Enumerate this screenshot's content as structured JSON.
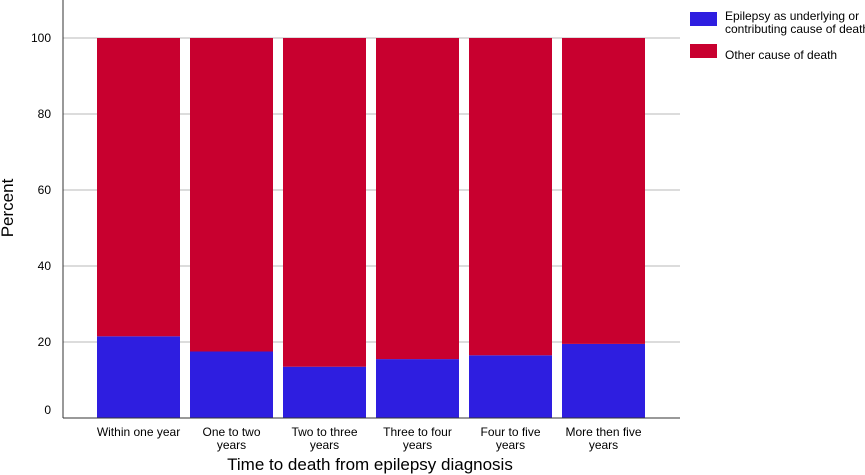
{
  "chart_data": {
    "type": "bar",
    "stacked": true,
    "title": "",
    "xlabel": "Time to death from epilepsy diagnosis",
    "ylabel": "Percent",
    "ylim": [
      0,
      110
    ],
    "yticks": [
      0,
      20,
      40,
      60,
      80,
      100
    ],
    "grid": true,
    "legend_position": "top-right",
    "categories": [
      [
        "Within one year"
      ],
      [
        "One to two",
        "years"
      ],
      [
        "Two to three",
        "years"
      ],
      [
        "Three to four",
        "years"
      ],
      [
        "Four to five",
        "years"
      ],
      [
        "More then five",
        "years"
      ]
    ],
    "series": [
      {
        "name": "Epilepsy as underlying or contributing cause of death",
        "name_lines": [
          "Epilepsy as underlying or",
          "contributing cause of death"
        ],
        "color": "#2e1ee0",
        "values": [
          21.5,
          17.5,
          13.5,
          15.5,
          16.5,
          19.5
        ]
      },
      {
        "name": "Other cause of death",
        "name_lines": [
          "Other cause of death"
        ],
        "color": "#c8002f",
        "values": [
          78.5,
          82.5,
          86.5,
          84.5,
          83.5,
          80.5
        ]
      }
    ]
  }
}
